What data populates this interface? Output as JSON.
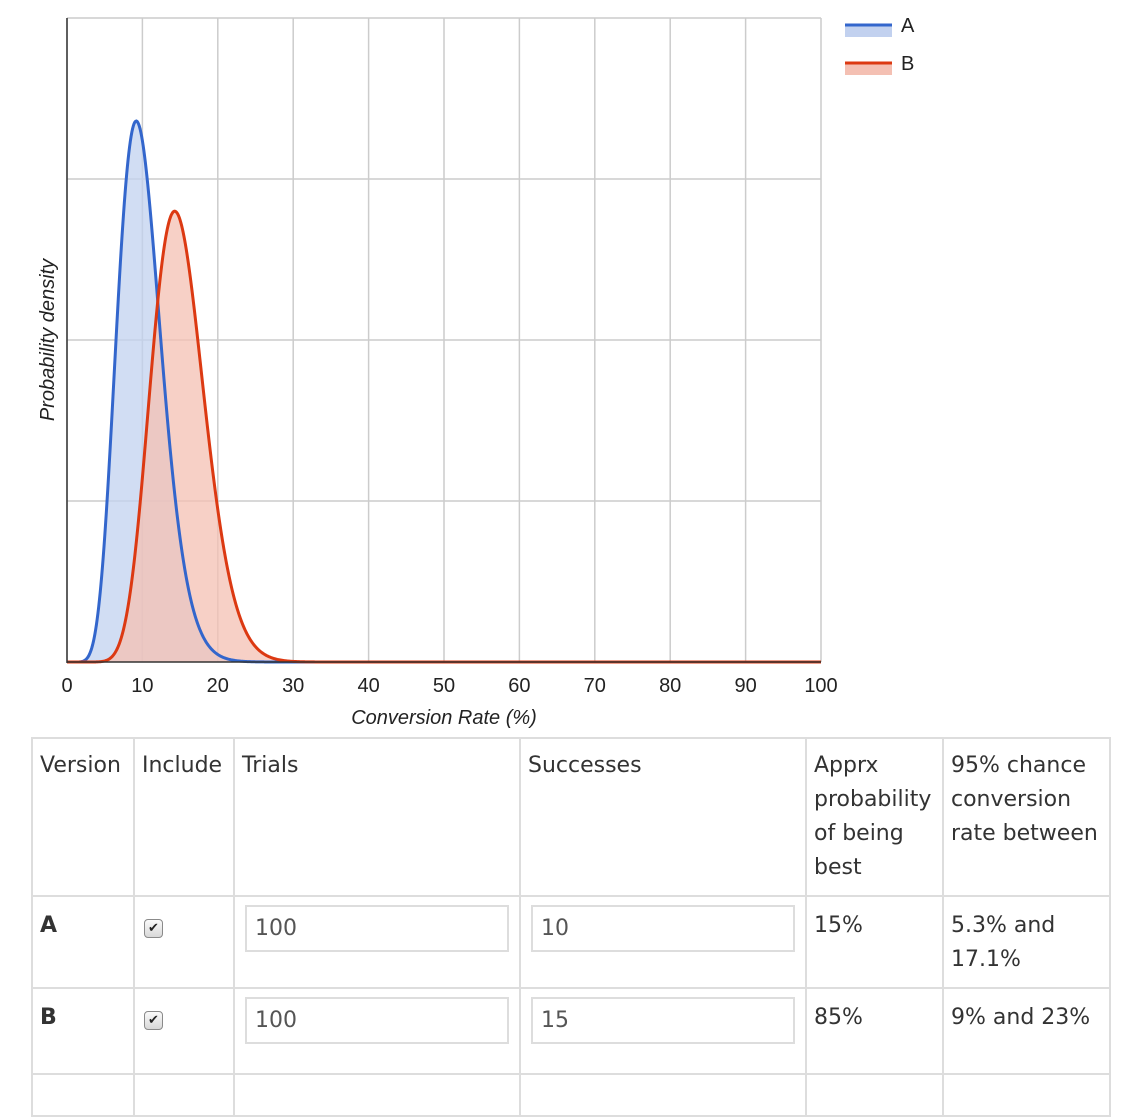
{
  "chart_data": {
    "type": "area",
    "x_label": "Conversion Rate (%)",
    "y_label": "Probability density",
    "x_range": [
      0,
      100
    ],
    "x_ticks": [
      0,
      10,
      20,
      30,
      40,
      50,
      60,
      70,
      80,
      90,
      100
    ],
    "y_axis_tick_labels_shown": false,
    "y_range_relative": [
      0,
      1.0
    ],
    "grid": true,
    "legend_position": "top-right",
    "series": [
      {
        "name": "A",
        "color": "#3366cc",
        "fill": "#c2d1ef",
        "alpha": 10,
        "beta": 90,
        "peak_x": 9.6,
        "peak_relative_height": 0.84,
        "x": [
          0,
          2,
          4,
          6,
          8,
          10,
          12,
          14,
          16,
          18,
          20,
          22,
          24,
          26,
          28,
          30,
          35,
          40,
          100
        ],
        "y": [
          0,
          0.0,
          0.04,
          0.28,
          0.67,
          0.83,
          0.64,
          0.36,
          0.16,
          0.06,
          0.02,
          0.005,
          0.001,
          0,
          0,
          0,
          0,
          0,
          0
        ]
      },
      {
        "name": "B",
        "color": "#dc3912",
        "fill": "#f4c0b3",
        "alpha": 15,
        "beta": 85,
        "peak_x": 14.6,
        "peak_relative_height": 0.7,
        "x": [
          0,
          4,
          6,
          8,
          10,
          12,
          14,
          16,
          18,
          20,
          22,
          24,
          26,
          28,
          30,
          35,
          40,
          100
        ],
        "y": [
          0,
          0.0,
          0.01,
          0.08,
          0.27,
          0.53,
          0.69,
          0.65,
          0.48,
          0.28,
          0.14,
          0.06,
          0.022,
          0.007,
          0.002,
          0,
          0,
          0
        ]
      }
    ]
  },
  "table": {
    "headers": [
      "Version",
      "Include",
      "Trials",
      "Successes",
      "Apprx probability of being best",
      "95% chance conversion rate between"
    ],
    "rows": [
      {
        "version": "A",
        "include": true,
        "trials": "100",
        "successes": "10",
        "prob_best": "15%",
        "interval": "5.3% and 17.1%"
      },
      {
        "version": "B",
        "include": true,
        "trials": "100",
        "successes": "15",
        "prob_best": "85%",
        "interval": "9% and 23%"
      }
    ]
  },
  "checkbox_icon": "checkmark-icon"
}
